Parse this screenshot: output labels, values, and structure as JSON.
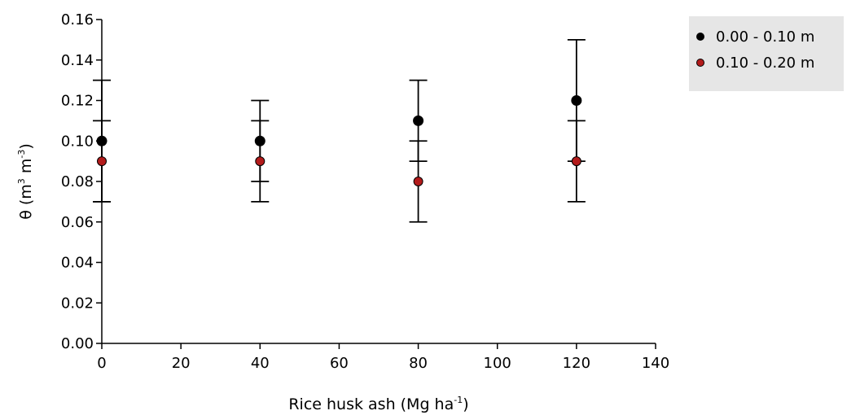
{
  "chart_data": {
    "type": "scatter",
    "title": "",
    "xlabel": "Rice husk ash (Mg ha-1)",
    "xlabel_parts": {
      "text": "Rice husk ash (Mg ha",
      "sup": "-1",
      "close": ")"
    },
    "ylabel": "θ (m3 m-3)",
    "ylabel_parts": {
      "text1": "θ (m",
      "sup1": "3",
      "text2": " m",
      "sup2": "-3",
      "close": ")"
    },
    "xlim": [
      0,
      140
    ],
    "ylim": [
      0.0,
      0.16
    ],
    "x_ticks": [
      "0",
      "20",
      "40",
      "60",
      "80",
      "100",
      "120",
      "140"
    ],
    "y_ticks": [
      "0.00",
      "0.02",
      "0.04",
      "0.06",
      "0.08",
      "0.10",
      "0.12",
      "0.14",
      "0.16"
    ],
    "grid": false,
    "legend_position": "top-right",
    "series": [
      {
        "name": "0.00 - 0.10 m",
        "color": "#000000",
        "x": [
          0,
          40,
          80,
          120
        ],
        "y": [
          0.1,
          0.1,
          0.11,
          0.12
        ],
        "err_low": [
          0.07,
          0.08,
          0.09,
          0.09
        ],
        "err_high": [
          0.13,
          0.12,
          0.13,
          0.15
        ]
      },
      {
        "name": "0.10 - 0.20 m",
        "color": "#b31b1b",
        "x": [
          0,
          40,
          80,
          120
        ],
        "y": [
          0.09,
          0.09,
          0.08,
          0.09
        ],
        "err_low": [
          0.07,
          0.07,
          0.06,
          0.07
        ],
        "err_high": [
          0.11,
          0.11,
          0.1,
          0.11
        ]
      }
    ]
  }
}
